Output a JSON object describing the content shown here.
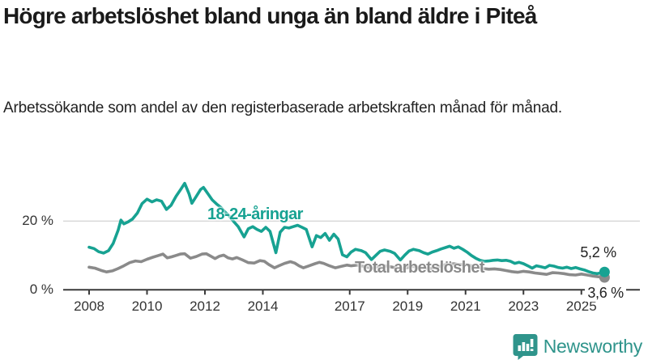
{
  "header": {
    "title": "Högre arbetslöshet bland unga än bland äldre i Piteå",
    "subtitle": "Arbetssökande som andel av den registerbaserade arbetskraften månad för månad."
  },
  "footer": {
    "logo_text": "Newsworthy",
    "logo_icon": "bar-chart-speech-bubble-icon",
    "logo_color": "#2f948b"
  },
  "chart_data": {
    "type": "line",
    "title": "Högre arbetslöshet bland unga än bland äldre i Piteå",
    "subtitle": "Arbetssökande som andel av den registerbaserade arbetskraften månad för månad.",
    "unit": "%",
    "grid": "horizontal-only",
    "x_range": [
      2007.5,
      2026.1
    ],
    "ylim": [
      0,
      33
    ],
    "x_ticks": [
      2008,
      2010,
      2012,
      2014,
      2017,
      2019,
      2021,
      2023,
      2025
    ],
    "y_ticks": [
      {
        "value": 0,
        "label": "0 %"
      },
      {
        "value": 20,
        "label": "20 %"
      }
    ],
    "axis_color": "#3a3a3a",
    "gridline_color": "#d8d8d8",
    "series": [
      {
        "name": "Total arbetslöshet",
        "color": "#8a8a8a",
        "end_label": "3,6 %",
        "end_value": 3.6,
        "points": [
          [
            2008.0,
            6.6
          ],
          [
            2008.2,
            6.3
          ],
          [
            2008.4,
            5.7
          ],
          [
            2008.6,
            5.2
          ],
          [
            2008.8,
            5.5
          ],
          [
            2009.0,
            6.2
          ],
          [
            2009.2,
            7.0
          ],
          [
            2009.4,
            7.9
          ],
          [
            2009.6,
            8.4
          ],
          [
            2009.8,
            8.2
          ],
          [
            2010.0,
            8.9
          ],
          [
            2010.2,
            9.5
          ],
          [
            2010.4,
            10.0
          ],
          [
            2010.55,
            10.4
          ],
          [
            2010.7,
            9.3
          ],
          [
            2010.85,
            9.6
          ],
          [
            2011.0,
            10.0
          ],
          [
            2011.15,
            10.4
          ],
          [
            2011.3,
            10.5
          ],
          [
            2011.5,
            9.2
          ],
          [
            2011.7,
            9.7
          ],
          [
            2011.9,
            10.4
          ],
          [
            2012.05,
            10.5
          ],
          [
            2012.2,
            9.8
          ],
          [
            2012.35,
            9.1
          ],
          [
            2012.5,
            9.8
          ],
          [
            2012.65,
            10.1
          ],
          [
            2012.8,
            9.3
          ],
          [
            2012.95,
            9.0
          ],
          [
            2013.1,
            9.4
          ],
          [
            2013.3,
            8.7
          ],
          [
            2013.5,
            7.9
          ],
          [
            2013.7,
            7.8
          ],
          [
            2013.9,
            8.5
          ],
          [
            2014.05,
            8.3
          ],
          [
            2014.2,
            7.4
          ],
          [
            2014.4,
            6.4
          ],
          [
            2014.55,
            7.0
          ],
          [
            2014.75,
            7.7
          ],
          [
            2014.95,
            8.2
          ],
          [
            2015.1,
            7.8
          ],
          [
            2015.25,
            7.0
          ],
          [
            2015.4,
            6.4
          ],
          [
            2015.6,
            7.0
          ],
          [
            2015.8,
            7.6
          ],
          [
            2015.95,
            8.0
          ],
          [
            2016.1,
            7.7
          ],
          [
            2016.3,
            7.0
          ],
          [
            2016.5,
            6.4
          ],
          [
            2016.7,
            6.8
          ],
          [
            2016.9,
            7.2
          ],
          [
            2017.05,
            7.0
          ],
          [
            2017.25,
            7.2
          ],
          [
            2017.45,
            6.9
          ],
          [
            2017.65,
            6.5
          ],
          [
            2017.8,
            6.3
          ],
          [
            2018.0,
            6.8
          ],
          [
            2018.2,
            7.0
          ],
          [
            2018.4,
            6.7
          ],
          [
            2018.6,
            6.4
          ],
          [
            2018.8,
            6.1
          ],
          [
            2019.0,
            6.5
          ],
          [
            2019.2,
            6.8
          ],
          [
            2019.4,
            6.5
          ],
          [
            2019.6,
            6.3
          ],
          [
            2019.8,
            6.2
          ],
          [
            2020.0,
            6.5
          ],
          [
            2020.2,
            7.1
          ],
          [
            2020.4,
            7.5
          ],
          [
            2020.6,
            7.6
          ],
          [
            2020.8,
            7.3
          ],
          [
            2021.0,
            7.4
          ],
          [
            2021.2,
            7.0
          ],
          [
            2021.4,
            6.6
          ],
          [
            2021.6,
            6.2
          ],
          [
            2021.8,
            6.0
          ],
          [
            2022.0,
            6.1
          ],
          [
            2022.2,
            5.9
          ],
          [
            2022.4,
            5.6
          ],
          [
            2022.6,
            5.3
          ],
          [
            2022.8,
            5.1
          ],
          [
            2023.0,
            5.4
          ],
          [
            2023.2,
            5.2
          ],
          [
            2023.4,
            4.9
          ],
          [
            2023.6,
            4.7
          ],
          [
            2023.8,
            4.5
          ],
          [
            2024.0,
            5.0
          ],
          [
            2024.2,
            4.9
          ],
          [
            2024.4,
            4.7
          ],
          [
            2024.6,
            4.4
          ],
          [
            2024.8,
            4.3
          ],
          [
            2025.0,
            4.6
          ],
          [
            2025.2,
            4.3
          ],
          [
            2025.4,
            4.0
          ],
          [
            2025.6,
            3.8
          ],
          [
            2025.8,
            3.6
          ]
        ]
      },
      {
        "name": "18-24-åringar",
        "color": "#17a292",
        "end_label": "5,2 %",
        "end_value": 5.2,
        "points": [
          [
            2008.0,
            12.4
          ],
          [
            2008.17,
            12.0
          ],
          [
            2008.33,
            11.1
          ],
          [
            2008.5,
            10.7
          ],
          [
            2008.67,
            11.4
          ],
          [
            2008.83,
            13.5
          ],
          [
            2009.0,
            17.3
          ],
          [
            2009.1,
            20.3
          ],
          [
            2009.2,
            19.2
          ],
          [
            2009.35,
            19.8
          ],
          [
            2009.5,
            20.6
          ],
          [
            2009.67,
            22.4
          ],
          [
            2009.83,
            25.1
          ],
          [
            2010.0,
            26.4
          ],
          [
            2010.17,
            25.6
          ],
          [
            2010.33,
            26.2
          ],
          [
            2010.5,
            25.8
          ],
          [
            2010.67,
            23.4
          ],
          [
            2010.83,
            24.6
          ],
          [
            2011.0,
            27.2
          ],
          [
            2011.17,
            29.3
          ],
          [
            2011.3,
            31.0
          ],
          [
            2011.45,
            28.0
          ],
          [
            2011.55,
            25.2
          ],
          [
            2011.7,
            27.2
          ],
          [
            2011.85,
            29.2
          ],
          [
            2011.95,
            29.8
          ],
          [
            2012.1,
            28.0
          ],
          [
            2012.25,
            26.2
          ],
          [
            2012.4,
            25.0
          ],
          [
            2012.55,
            24.0
          ],
          [
            2012.7,
            22.6
          ],
          [
            2012.85,
            21.4
          ],
          [
            2013.0,
            19.8
          ],
          [
            2013.15,
            18.4
          ],
          [
            2013.35,
            15.4
          ],
          [
            2013.5,
            17.8
          ],
          [
            2013.65,
            18.4
          ],
          [
            2013.8,
            17.6
          ],
          [
            2013.95,
            17.0
          ],
          [
            2014.1,
            18.2
          ],
          [
            2014.25,
            17.0
          ],
          [
            2014.45,
            10.8
          ],
          [
            2014.6,
            16.8
          ],
          [
            2014.75,
            18.2
          ],
          [
            2014.9,
            18.0
          ],
          [
            2015.05,
            18.4
          ],
          [
            2015.2,
            18.8
          ],
          [
            2015.35,
            18.2
          ],
          [
            2015.5,
            17.6
          ],
          [
            2015.7,
            12.5
          ],
          [
            2015.85,
            15.8
          ],
          [
            2016.0,
            15.2
          ],
          [
            2016.15,
            16.4
          ],
          [
            2016.3,
            14.4
          ],
          [
            2016.45,
            16.2
          ],
          [
            2016.6,
            14.8
          ],
          [
            2016.75,
            10.2
          ],
          [
            2016.9,
            9.6
          ],
          [
            2017.05,
            11.0
          ],
          [
            2017.2,
            11.8
          ],
          [
            2017.4,
            11.4
          ],
          [
            2017.55,
            10.8
          ],
          [
            2017.75,
            8.8
          ],
          [
            2017.9,
            10.0
          ],
          [
            2018.05,
            11.2
          ],
          [
            2018.2,
            11.6
          ],
          [
            2018.4,
            11.2
          ],
          [
            2018.55,
            10.6
          ],
          [
            2018.75,
            8.7
          ],
          [
            2018.9,
            10.1
          ],
          [
            2019.05,
            11.3
          ],
          [
            2019.2,
            11.8
          ],
          [
            2019.4,
            11.4
          ],
          [
            2019.55,
            10.8
          ],
          [
            2019.7,
            10.4
          ],
          [
            2019.85,
            11.0
          ],
          [
            2020.0,
            11.4
          ],
          [
            2020.15,
            11.9
          ],
          [
            2020.3,
            12.3
          ],
          [
            2020.45,
            12.7
          ],
          [
            2020.6,
            12.1
          ],
          [
            2020.75,
            12.5
          ],
          [
            2020.9,
            11.8
          ],
          [
            2021.05,
            11.0
          ],
          [
            2021.2,
            10.0
          ],
          [
            2021.35,
            9.2
          ],
          [
            2021.5,
            8.6
          ],
          [
            2021.65,
            8.3
          ],
          [
            2021.8,
            8.4
          ],
          [
            2021.95,
            8.6
          ],
          [
            2022.1,
            8.7
          ],
          [
            2022.25,
            8.5
          ],
          [
            2022.4,
            8.6
          ],
          [
            2022.55,
            8.3
          ],
          [
            2022.7,
            7.7
          ],
          [
            2022.85,
            8.0
          ],
          [
            2023.0,
            7.6
          ],
          [
            2023.15,
            7.0
          ],
          [
            2023.3,
            6.3
          ],
          [
            2023.45,
            7.0
          ],
          [
            2023.6,
            6.7
          ],
          [
            2023.75,
            6.4
          ],
          [
            2023.9,
            7.1
          ],
          [
            2024.05,
            6.9
          ],
          [
            2024.2,
            6.5
          ],
          [
            2024.35,
            6.3
          ],
          [
            2024.5,
            6.6
          ],
          [
            2024.65,
            6.2
          ],
          [
            2024.8,
            6.5
          ],
          [
            2024.95,
            6.1
          ],
          [
            2025.1,
            5.8
          ],
          [
            2025.25,
            5.3
          ],
          [
            2025.4,
            4.9
          ],
          [
            2025.55,
            4.7
          ],
          [
            2025.7,
            5.0
          ],
          [
            2025.8,
            5.2
          ]
        ]
      }
    ],
    "legend_position": "inline-labels"
  }
}
